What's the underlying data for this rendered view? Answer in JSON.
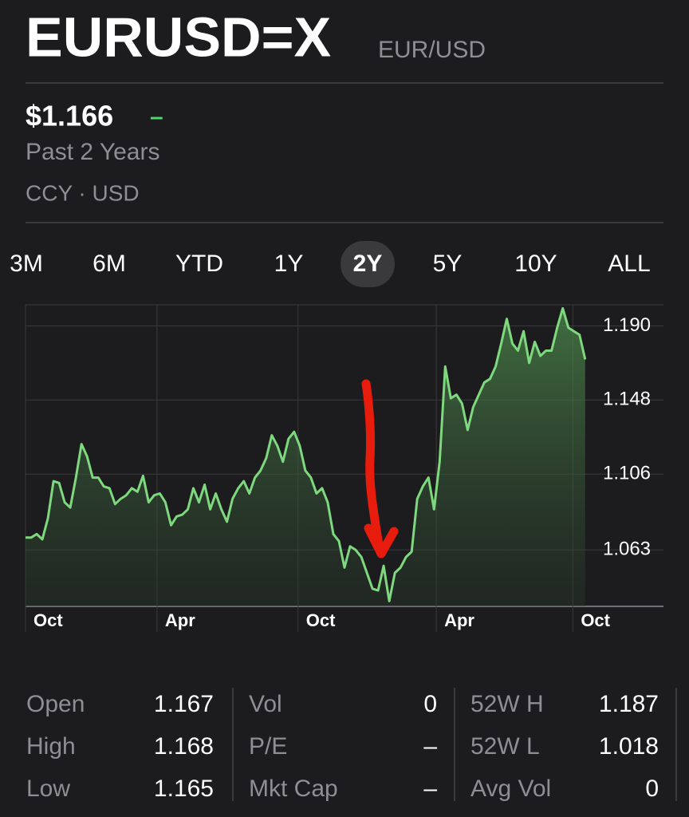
{
  "header": {
    "title": "EURUSD=X",
    "subtitle": "EUR/USD"
  },
  "quote": {
    "price": "$1.166",
    "change": "–",
    "period": "Past 2 Years",
    "exchange": "CCY · USD"
  },
  "ranges": {
    "items": [
      "3M",
      "6M",
      "YTD",
      "1Y",
      "2Y",
      "5Y",
      "10Y",
      "ALL"
    ],
    "selected": "2Y"
  },
  "chart_data": {
    "type": "area",
    "color": "#7ed87e",
    "values": [
      1.07,
      1.07,
      1.072,
      1.069,
      1.081,
      1.102,
      1.101,
      1.09,
      1.087,
      1.104,
      1.123,
      1.116,
      1.104,
      1.104,
      1.099,
      1.098,
      1.089,
      1.092,
      1.094,
      1.098,
      1.096,
      1.105,
      1.09,
      1.094,
      1.095,
      1.09,
      1.077,
      1.082,
      1.083,
      1.086,
      1.098,
      1.09,
      1.1,
      1.086,
      1.095,
      1.086,
      1.079,
      1.092,
      1.098,
      1.102,
      1.095,
      1.104,
      1.108,
      1.115,
      1.128,
      1.122,
      1.113,
      1.126,
      1.13,
      1.122,
      1.108,
      1.104,
      1.095,
      1.098,
      1.09,
      1.072,
      1.068,
      1.053,
      1.065,
      1.063,
      1.059,
      1.05,
      1.041,
      1.04,
      1.054,
      1.034,
      1.05,
      1.053,
      1.059,
      1.062,
      1.092,
      1.099,
      1.104,
      1.086,
      1.113,
      1.167,
      1.149,
      1.151,
      1.146,
      1.131,
      1.144,
      1.151,
      1.158,
      1.16,
      1.167,
      1.18,
      1.194,
      1.18,
      1.176,
      1.187,
      1.169,
      1.181,
      1.173,
      1.176,
      1.176,
      1.189,
      1.2,
      1.189,
      1.187,
      1.185,
      1.171
    ],
    "xlim": [
      0,
      114
    ],
    "xticks": [
      {
        "value": 0,
        "label": "Oct"
      },
      {
        "value": 23.5,
        "label": "Apr"
      },
      {
        "value": 48.7,
        "label": "Oct"
      },
      {
        "value": 73.4,
        "label": "Apr"
      },
      {
        "value": 97.8,
        "label": "Oct"
      }
    ],
    "ylim": [
      1.031,
      1.202
    ],
    "yticks": [
      {
        "value": 1.19,
        "label": "1.190"
      },
      1.148,
      1.106,
      1.063
    ],
    "grid": true
  },
  "stats": [
    [
      {
        "label": "Open",
        "value": "1.167"
      },
      {
        "label": "High",
        "value": "1.168"
      },
      {
        "label": "Low",
        "value": "1.165"
      }
    ],
    [
      {
        "label": "Vol",
        "value": "0"
      },
      {
        "label": "P/E",
        "value": "–"
      },
      {
        "label": "Mkt Cap",
        "value": "–"
      }
    ],
    [
      {
        "label": "52W H",
        "value": "1.187"
      },
      {
        "label": "52W L",
        "value": "1.018"
      },
      {
        "label": "Avg Vol",
        "value": "0"
      }
    ]
  ]
}
